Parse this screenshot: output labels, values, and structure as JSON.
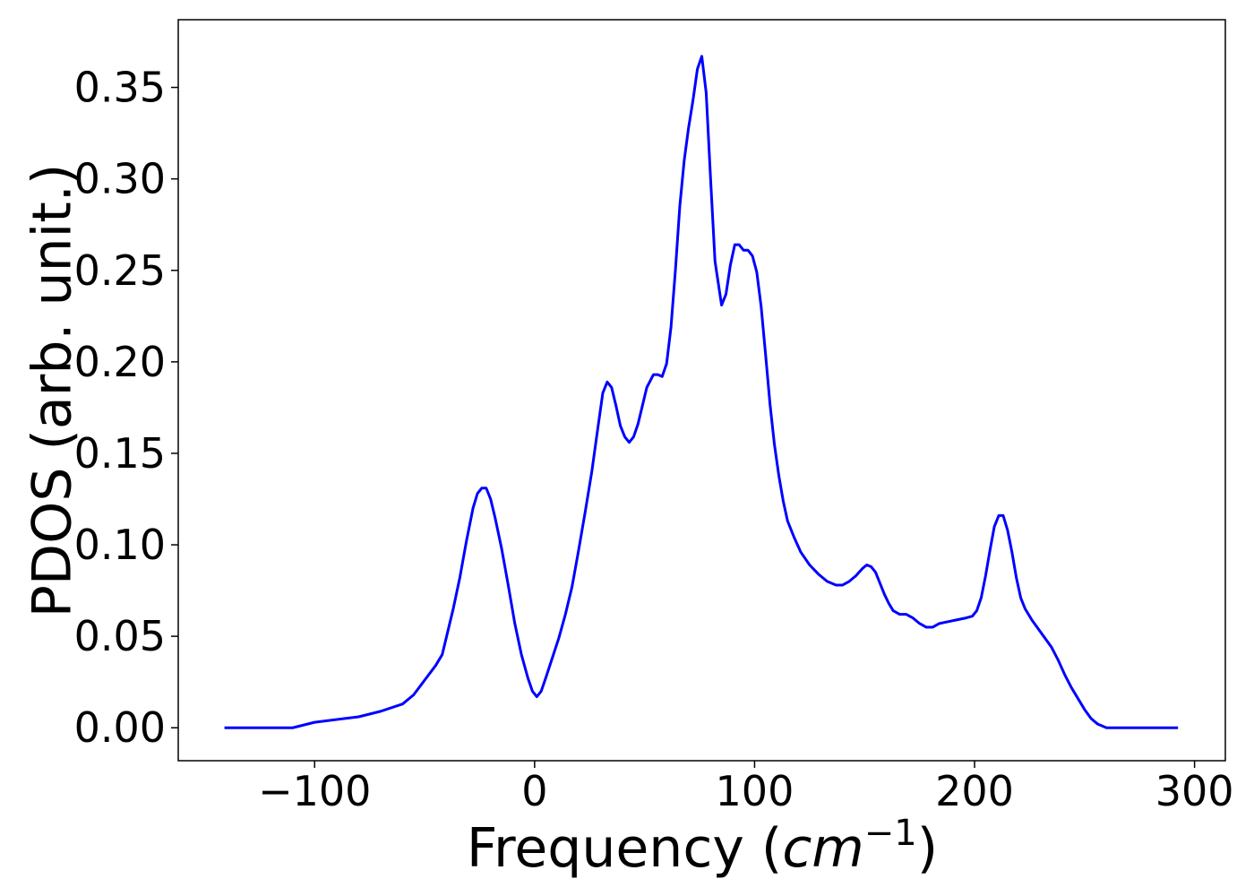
{
  "chart_data": {
    "type": "line",
    "xlabel": [
      "Frequency (",
      "cm",
      "−1",
      ")"
    ],
    "ylabel": "PDOS (arb. unit.)",
    "x": [
      -141,
      -110,
      -100,
      -80,
      -70,
      -60,
      -55,
      -50,
      -45,
      -42,
      -40,
      -37,
      -34,
      -31,
      -28,
      -26,
      -24,
      -22,
      -20,
      -18,
      -15,
      -12,
      -9,
      -6,
      -3,
      -1,
      1,
      3,
      5,
      8,
      11,
      14,
      17,
      20,
      23,
      26,
      29,
      31,
      33,
      35,
      37,
      39,
      41,
      43,
      45,
      47,
      49,
      51,
      54,
      56,
      58,
      60,
      62,
      64,
      66,
      68,
      70,
      72,
      74,
      76,
      78,
      80,
      82,
      85,
      87,
      89,
      91,
      93,
      95,
      97,
      99,
      101,
      103,
      105,
      107,
      109,
      111,
      113,
      115,
      118,
      121,
      125,
      129,
      133,
      137,
      140,
      143,
      146,
      149,
      151,
      153,
      155,
      157,
      159,
      161,
      163,
      166,
      169,
      172,
      175,
      178,
      181,
      184,
      188,
      192,
      196,
      199,
      201,
      203,
      205,
      207,
      209,
      211,
      213,
      215,
      217,
      219,
      221,
      223,
      226,
      229,
      232,
      235,
      238,
      241,
      244,
      247,
      250,
      253,
      256,
      260,
      270,
      280,
      292.5
    ],
    "series": [
      {
        "name": "PDOS",
        "color": "#0000ff",
        "values": [
          0,
          0,
          0.003,
          0.006,
          0.009,
          0.013,
          0.018,
          0.026,
          0.034,
          0.04,
          0.05,
          0.065,
          0.082,
          0.102,
          0.12,
          0.128,
          0.131,
          0.131,
          0.125,
          0.115,
          0.098,
          0.078,
          0.057,
          0.04,
          0.027,
          0.02,
          0.017,
          0.02,
          0.027,
          0.038,
          0.049,
          0.062,
          0.077,
          0.097,
          0.118,
          0.14,
          0.166,
          0.183,
          0.189,
          0.186,
          0.176,
          0.165,
          0.159,
          0.156,
          0.159,
          0.166,
          0.176,
          0.186,
          0.193,
          0.193,
          0.192,
          0.199,
          0.219,
          0.25,
          0.285,
          0.31,
          0.328,
          0.343,
          0.36,
          0.367,
          0.347,
          0.3,
          0.255,
          0.231,
          0.237,
          0.253,
          0.264,
          0.264,
          0.261,
          0.261,
          0.258,
          0.249,
          0.23,
          0.204,
          0.177,
          0.155,
          0.138,
          0.124,
          0.113,
          0.104,
          0.096,
          0.089,
          0.084,
          0.08,
          0.078,
          0.078,
          0.08,
          0.083,
          0.087,
          0.089,
          0.088,
          0.085,
          0.079,
          0.073,
          0.068,
          0.064,
          0.062,
          0.062,
          0.06,
          0.057,
          0.055,
          0.055,
          0.057,
          0.058,
          0.059,
          0.06,
          0.061,
          0.064,
          0.071,
          0.083,
          0.097,
          0.11,
          0.116,
          0.116,
          0.108,
          0.096,
          0.082,
          0.071,
          0.065,
          0.059,
          0.054,
          0.049,
          0.044,
          0.037,
          0.029,
          0.022,
          0.016,
          0.01,
          0.005,
          0.002,
          0,
          0,
          0,
          0
        ]
      }
    ],
    "xlim": [
      -162,
      314
    ],
    "ylim": [
      -0.018,
      0.387
    ],
    "xticks": [
      {
        "value": -100,
        "label": "−100"
      },
      0,
      100,
      200,
      300
    ],
    "yticks": [
      {
        "value": 0,
        "label": "0.00"
      },
      {
        "value": 0.05,
        "label": "0.05"
      },
      {
        "value": 0.1,
        "label": "0.10"
      },
      {
        "value": 0.15,
        "label": "0.15"
      },
      {
        "value": 0.2,
        "label": "0.20"
      },
      {
        "value": 0.25,
        "label": "0.25"
      },
      {
        "value": 0.3,
        "label": "0.30"
      },
      {
        "value": 0.35,
        "label": "0.35"
      }
    ]
  }
}
